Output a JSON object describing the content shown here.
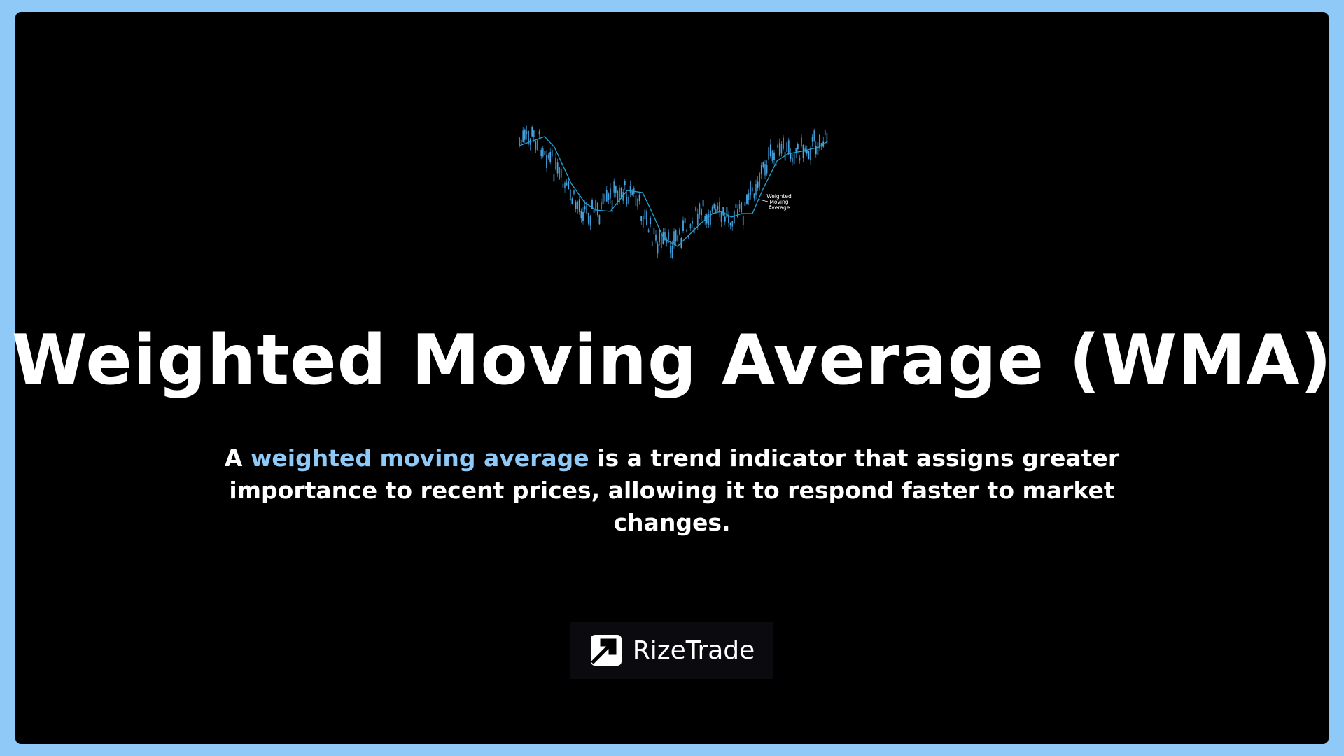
{
  "title": "Weighted Moving Average (WMA)",
  "description": {
    "prefix": "A ",
    "highlight": "weighted moving average",
    "suffix": " is a trend indicator that assigns greater importance to recent prices, allowing it to respond faster to market changes."
  },
  "chart": {
    "label_line1": "Weighted",
    "label_line2": "Moving",
    "label_line3": "Average",
    "candle_color": "#4aaef0",
    "line_color": "#1fa3d6"
  },
  "brand": {
    "name": "RizeTrade",
    "icon": "arrow-up-right-icon"
  },
  "colors": {
    "border": "#8ec9f8",
    "background": "#000000",
    "highlight": "#8ec9f8"
  }
}
